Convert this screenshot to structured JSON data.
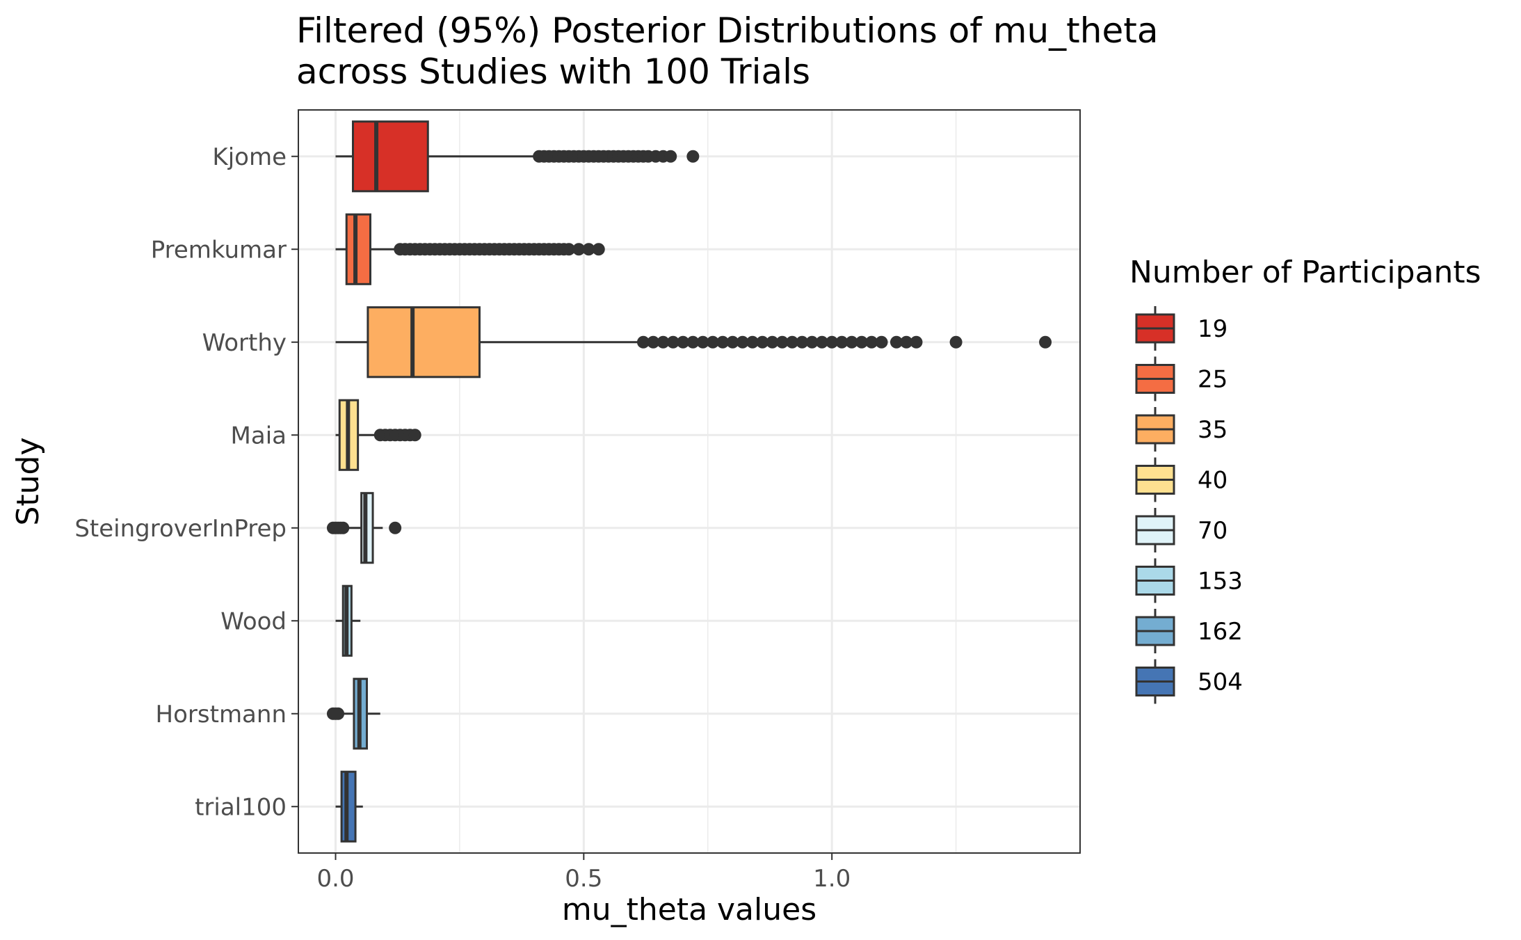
{
  "chart_data": {
    "type": "boxplot",
    "orientation": "horizontal",
    "title_lines": [
      "Filtered (95%) Posterior Distributions of mu_theta",
      "across Studies with 100 Trials"
    ],
    "xlabel": "mu_theta values",
    "ylabel": "Study",
    "xlim": [
      -0.075,
      1.5
    ],
    "x_ticks": [
      {
        "value": 0.0,
        "label": "0.0"
      },
      {
        "value": 0.5,
        "label": "0.5"
      },
      {
        "value": 1.0,
        "label": "1.0"
      }
    ],
    "grid": true,
    "legend": {
      "title": "Number of Participants",
      "position": "right",
      "entries": [
        {
          "label": "19",
          "color": "#d73027"
        },
        {
          "label": "25",
          "color": "#f46d43"
        },
        {
          "label": "35",
          "color": "#fdae61"
        },
        {
          "label": "40",
          "color": "#fee090"
        },
        {
          "label": "70",
          "color": "#e0f3f8"
        },
        {
          "label": "153",
          "color": "#abd9e9"
        },
        {
          "label": "162",
          "color": "#74add1"
        },
        {
          "label": "504",
          "color": "#4575b4"
        }
      ]
    },
    "categories": [
      "Kjome",
      "Premkumar",
      "Worthy",
      "Maia",
      "SteingroverInPrep",
      "Wood",
      "Horstmann",
      "trial100"
    ],
    "series": [
      {
        "study": "Kjome",
        "participants": "19",
        "color": "#d73027",
        "whisker_low": 0.0,
        "q1": 0.035,
        "median": 0.082,
        "q3": 0.186,
        "whisker_high": 0.41,
        "outliers": [
          0.41,
          0.42,
          0.43,
          0.44,
          0.45,
          0.46,
          0.47,
          0.48,
          0.49,
          0.5,
          0.51,
          0.52,
          0.53,
          0.54,
          0.55,
          0.56,
          0.57,
          0.58,
          0.59,
          0.6,
          0.61,
          0.62,
          0.63,
          0.645,
          0.66,
          0.675,
          0.72
        ]
      },
      {
        "study": "Premkumar",
        "participants": "25",
        "color": "#f46d43",
        "whisker_low": 0.0,
        "q1": 0.022,
        "median": 0.04,
        "q3": 0.07,
        "whisker_high": 0.13,
        "outliers": [
          0.13,
          0.14,
          0.15,
          0.16,
          0.17,
          0.18,
          0.19,
          0.2,
          0.21,
          0.22,
          0.23,
          0.24,
          0.25,
          0.26,
          0.27,
          0.28,
          0.29,
          0.3,
          0.31,
          0.32,
          0.33,
          0.34,
          0.35,
          0.36,
          0.37,
          0.38,
          0.39,
          0.4,
          0.41,
          0.42,
          0.43,
          0.44,
          0.45,
          0.46,
          0.47,
          0.49,
          0.51,
          0.53
        ]
      },
      {
        "study": "Worthy",
        "participants": "35",
        "color": "#fdae61",
        "whisker_low": 0.0,
        "q1": 0.065,
        "median": 0.155,
        "q3": 0.29,
        "whisker_high": 0.62,
        "outliers": [
          0.62,
          0.64,
          0.66,
          0.68,
          0.7,
          0.72,
          0.74,
          0.76,
          0.78,
          0.8,
          0.82,
          0.84,
          0.86,
          0.88,
          0.9,
          0.92,
          0.94,
          0.96,
          0.98,
          1.0,
          1.02,
          1.04,
          1.06,
          1.08,
          1.1,
          1.13,
          1.15,
          1.17,
          1.25,
          1.43
        ]
      },
      {
        "study": "Maia",
        "participants": "40",
        "color": "#fee090",
        "whisker_low": 0.0,
        "q1": 0.008,
        "median": 0.025,
        "q3": 0.045,
        "whisker_high": 0.088,
        "outliers": [
          0.09,
          0.1,
          0.11,
          0.12,
          0.13,
          0.14,
          0.15,
          0.16
        ]
      },
      {
        "study": "SteingroverInPrep",
        "participants": "70",
        "color": "#e0f3f8",
        "whisker_low": 0.025,
        "q1": 0.052,
        "median": 0.06,
        "q3": 0.075,
        "whisker_high": 0.095,
        "outliers": [
          -0.005,
          0.0,
          0.005,
          0.01,
          0.015,
          0.12
        ]
      },
      {
        "study": "Wood",
        "participants": "153",
        "color": "#abd9e9",
        "whisker_low": 0.0,
        "q1": 0.015,
        "median": 0.022,
        "q3": 0.032,
        "whisker_high": 0.05,
        "outliers": []
      },
      {
        "study": "Horstmann",
        "participants": "162",
        "color": "#74add1",
        "whisker_low": 0.015,
        "q1": 0.037,
        "median": 0.048,
        "q3": 0.063,
        "whisker_high": 0.09,
        "outliers": [
          -0.005,
          0.0,
          0.005
        ]
      },
      {
        "study": "trial100",
        "participants": "504",
        "color": "#4575b4",
        "whisker_low": 0.0,
        "q1": 0.012,
        "median": 0.022,
        "q3": 0.04,
        "whisker_high": 0.055,
        "outliers": []
      }
    ]
  }
}
